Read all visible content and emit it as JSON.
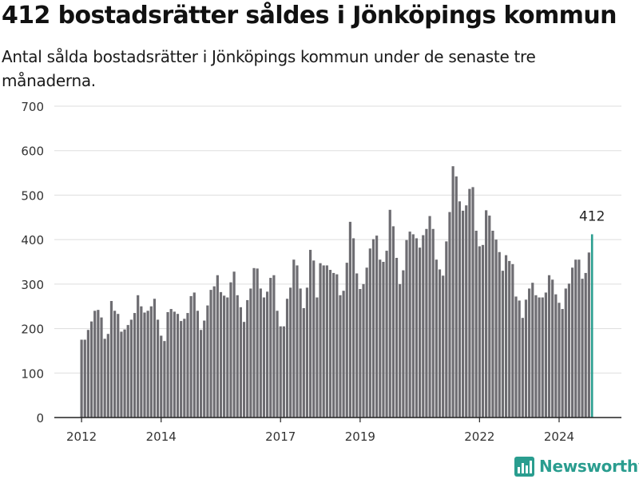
{
  "header": {
    "title": "412 bostadsrätter såldes i Jönköpings kommun",
    "subtitle": "Antal sålda bostadsrätter i Jönköpings kommun under de senaste tre månaderna."
  },
  "brand": {
    "name": "Newsworthy",
    "icon": "newsworthy-logo-icon",
    "color": "#2a9d8f"
  },
  "colors": {
    "bar": "#6e6d72",
    "highlight": "#2a9d8f",
    "grid": "#dddddd",
    "axis": "#222222",
    "text": "#333333"
  },
  "chart_data": {
    "type": "bar",
    "title": "412 bostadsrätter såldes i Jönköpings kommun",
    "subtitle": "Antal sålda bostadsrätter i Jönköpings kommun under de senaste tre månaderna.",
    "xlabel": "",
    "ylabel": "",
    "ylim": [
      0,
      700
    ],
    "yticks": [
      "0",
      "100",
      "200",
      "300",
      "400",
      "500",
      "600",
      "700"
    ],
    "xticks": [
      {
        "label": "2012",
        "index": 0
      },
      {
        "label": "2014",
        "index": 24
      },
      {
        "label": "2017",
        "index": 60
      },
      {
        "label": "2019",
        "index": 84
      },
      {
        "label": "2022",
        "index": 120
      },
      {
        "label": "2024",
        "index": 144
      }
    ],
    "grid": true,
    "legend": "none",
    "highlight_label": "412",
    "values": [
      175,
      175,
      197,
      216,
      240,
      242,
      225,
      177,
      188,
      262,
      240,
      233,
      193,
      198,
      208,
      220,
      235,
      275,
      250,
      236,
      240,
      250,
      267,
      220,
      184,
      172,
      237,
      244,
      238,
      233,
      217,
      222,
      235,
      273,
      281,
      240,
      197,
      218,
      252,
      287,
      295,
      320,
      282,
      274,
      270,
      304,
      328,
      275,
      248,
      215,
      264,
      290,
      336,
      335,
      290,
      270,
      283,
      314,
      320,
      240,
      205,
      205,
      267,
      292,
      355,
      342,
      290,
      246,
      292,
      377,
      353,
      270,
      347,
      342,
      342,
      332,
      325,
      322,
      275,
      285,
      348,
      440,
      403,
      324,
      289,
      300,
      337,
      380,
      401,
      409,
      355,
      350,
      375,
      467,
      430,
      359,
      300,
      331,
      399,
      418,
      412,
      403,
      382,
      410,
      424,
      453,
      424,
      355,
      333,
      319,
      396,
      462,
      565,
      542,
      486,
      465,
      477,
      514,
      518,
      420,
      385,
      388,
      466,
      454,
      420,
      400,
      372,
      330,
      365,
      352,
      345,
      272,
      263,
      224,
      265,
      290,
      303,
      275,
      270,
      270,
      281,
      320,
      310,
      277,
      258,
      244,
      290,
      301,
      337,
      355,
      355,
      312,
      325,
      371,
      412
    ]
  }
}
